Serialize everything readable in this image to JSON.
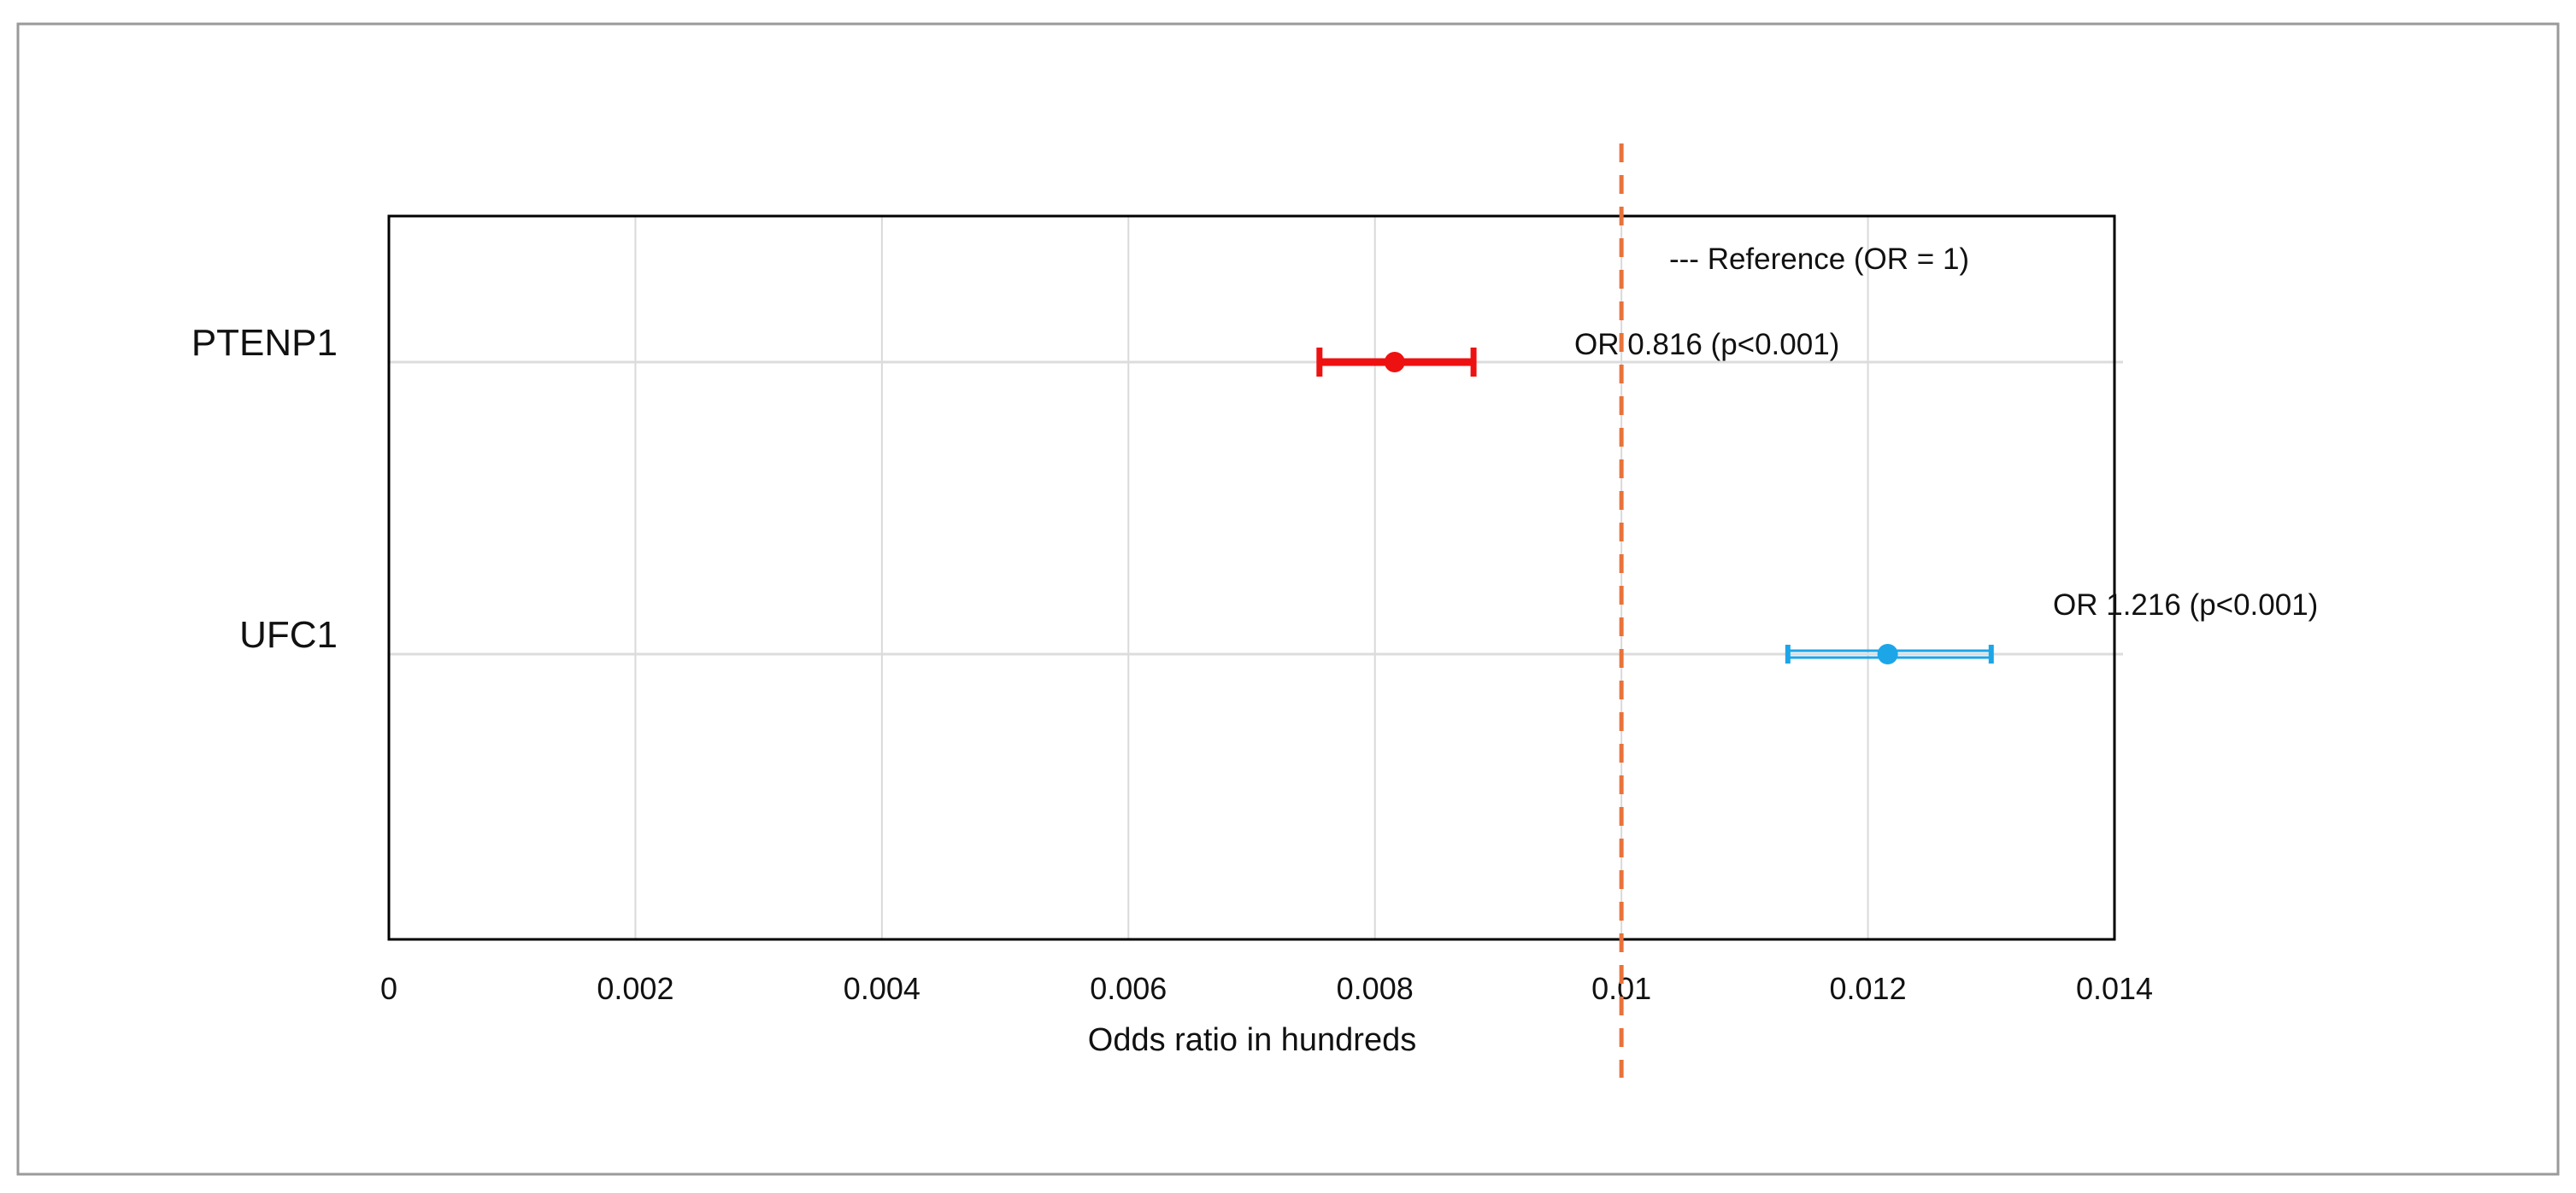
{
  "chart_data": {
    "type": "scatter",
    "subtype": "forest-plot",
    "title": "",
    "xlabel": "Odds ratio in hundreds",
    "ylabel": "",
    "xlim": [
      0,
      0.014
    ],
    "xticks": [
      0,
      0.002,
      0.004,
      0.006,
      0.008,
      0.01,
      0.012,
      0.014
    ],
    "xtick_labels": [
      "0",
      "0.002",
      "0.004",
      "0.006",
      "0.008",
      "0.01",
      "0.012",
      "0.014"
    ],
    "grid": "vertical",
    "categories": [
      "PTENP1",
      "UFC1"
    ],
    "series": [
      {
        "category": "PTENP1",
        "estimate": 0.00816,
        "ci_low": 0.00755,
        "ci_high": 0.0088,
        "annotation": "OR 0.816 (p<0.001)",
        "color": "#ee1111"
      },
      {
        "category": "UFC1",
        "estimate": 0.01216,
        "ci_low": 0.01135,
        "ci_high": 0.013,
        "annotation": "OR 1.216 (p<0.001)",
        "color": "#1ca6e8"
      }
    ],
    "reference": {
      "x": 0.01,
      "label": "--- Reference (OR = 1)",
      "color": "#e8733a",
      "style": "dashed"
    },
    "legend_placement": "top-right"
  }
}
